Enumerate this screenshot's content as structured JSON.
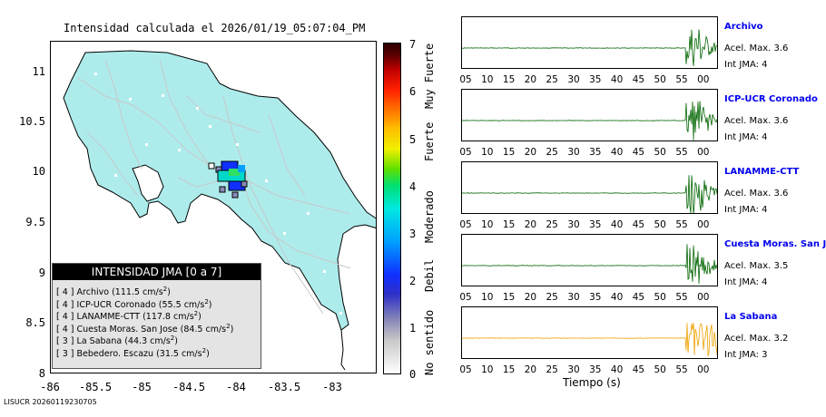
{
  "map": {
    "title": "Intensidad calculada el 2026/01/19_05:07:04_PM",
    "y_ticks": [
      "11",
      "10.5",
      "10",
      "9.5",
      "9",
      "8.5",
      "8"
    ],
    "x_ticks": [
      "-86",
      "-85.5",
      "-85",
      "-84.5",
      "-84",
      "-83.5",
      "-83"
    ],
    "colors": {
      "land": "#aeecec",
      "ocean": "#ffffff",
      "border": "#000000"
    }
  },
  "legend": {
    "title": "INTENSIDAD JMA [0 a 7]",
    "unit_base": "cm/s",
    "unit_exp": "2",
    "items": [
      {
        "jma": "[ 4 ]",
        "name": "Archivo",
        "pga": "(111.5",
        "close": ")"
      },
      {
        "jma": "[ 4 ]",
        "name": "ICP-UCR Coronado",
        "pga": "(55.5",
        "close": ")"
      },
      {
        "jma": "[ 4 ]",
        "name": "LANAMME-CTT",
        "pga": "(117.8",
        "close": ")"
      },
      {
        "jma": "[ 4 ]",
        "name": "Cuesta Moras. San Jose",
        "pga": "(84.5",
        "close": ")"
      },
      {
        "jma": "[ 3 ]",
        "name": "La Sabana",
        "pga": "(44.3",
        "close": ")"
      },
      {
        "jma": "[ 3 ]",
        "name": "Bebedero. Escazu",
        "pga": "(31.5",
        "close": ")"
      }
    ]
  },
  "colorbar": {
    "ticks": [
      "7",
      "6",
      "5",
      "4",
      "3",
      "2",
      "1",
      "0"
    ],
    "words": [
      "Muy Fuerte",
      "Fuerte",
      "Moderado",
      "Debil",
      "No sentido"
    ]
  },
  "waveforms": {
    "time_ticks": [
      "05",
      "10",
      "15",
      "20",
      "25",
      "30",
      "35",
      "40",
      "45",
      "50",
      "55",
      "00"
    ],
    "time_label": "Tiempo (s)",
    "stations": [
      {
        "name": "Archivo",
        "accel": "Acel. Max. 3.6",
        "jma": "Int JMA: 4",
        "color": "#006400"
      },
      {
        "name": "ICP-UCR Coronado",
        "accel": "Acel. Max. 3.6",
        "jma": "Int JMA: 4",
        "color": "#006400"
      },
      {
        "name": "LANAMME-CTT",
        "accel": "Acel. Max. 3.6",
        "jma": "Int JMA: 4",
        "color": "#006400"
      },
      {
        "name": "Cuesta Moras. San Jose",
        "accel": "Acel. Max. 3.5",
        "jma": "Int JMA: 4",
        "color": "#006400"
      },
      {
        "name": "La Sabana",
        "accel": "Acel. Max. 3.2",
        "jma": "Int JMA: 3",
        "color": "#f0a000"
      }
    ]
  },
  "footer": {
    "id": "LISUCR 20260119230705"
  }
}
